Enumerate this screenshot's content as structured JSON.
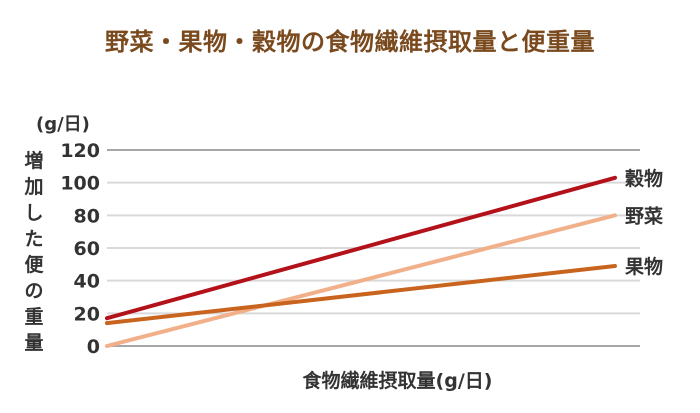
{
  "title": "野菜・果物・穀物の食物繊維摂取量と便重量",
  "y_unit": "(g/日)",
  "y_axis_label": "増加した便の重量",
  "x_axis_label": "食物繊維摂取量(g/日)",
  "colors": {
    "title": "#7a4a1e",
    "grain": "#b3121b",
    "vegetable": "#f2b08a",
    "fruit": "#c8641e",
    "grid": "#d9d9d9",
    "axis": "#a6a6a6"
  },
  "chart_data": {
    "type": "line",
    "title": "野菜・果物・穀物の食物繊維摂取量と便重量",
    "xlabel": "食物繊維摂取量(g/日)",
    "ylabel": "増加した便の重量 (g/日)",
    "ylim": [
      0,
      120
    ],
    "yticks": [
      0,
      20,
      40,
      60,
      80,
      100,
      120
    ],
    "grid": true,
    "legend_position": "inline-right",
    "x": [
      "start",
      "end"
    ],
    "series": [
      {
        "name": "穀物",
        "values": [
          17,
          103
        ],
        "color": "#b3121b"
      },
      {
        "name": "野菜",
        "values": [
          0,
          80
        ],
        "color": "#f2b08a"
      },
      {
        "name": "果物",
        "values": [
          14,
          49
        ],
        "color": "#c8641e"
      }
    ]
  }
}
